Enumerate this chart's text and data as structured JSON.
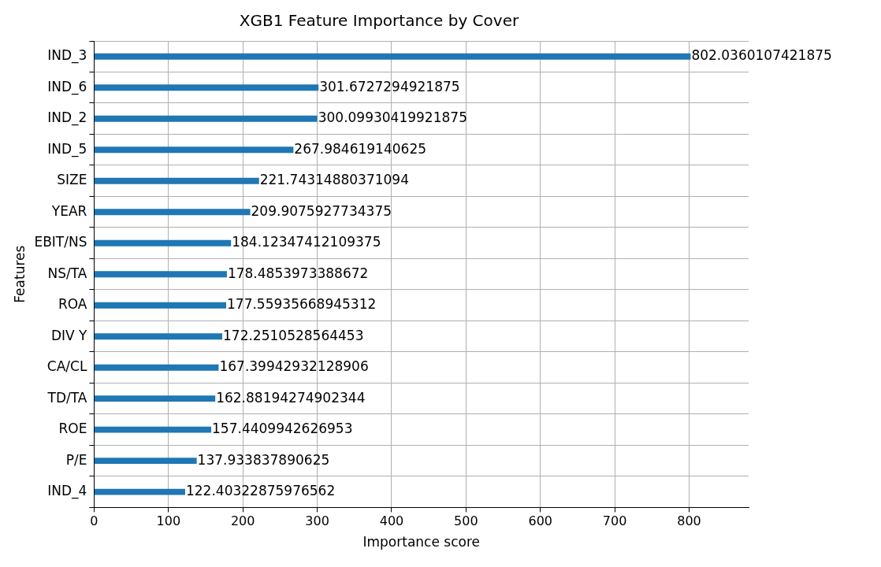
{
  "chart_data": {
    "type": "bar",
    "orientation": "horizontal",
    "title": "XGB1 Feature Importance by Cover",
    "xlabel": "Importance score",
    "ylabel": "Features",
    "categories": [
      "IND_3",
      "IND_6",
      "IND_2",
      "IND_5",
      "SIZE",
      "YEAR",
      "EBIT/NS",
      "NS/TA",
      "ROA",
      "DIV Y",
      "CA/CL",
      "TD/TA",
      "ROE",
      "P/E",
      "IND_4"
    ],
    "values": [
      802.0360107421875,
      301.6727294921875,
      300.09930419921875,
      267.984619140625,
      221.74314880371094,
      209.9075927734375,
      184.12347412109375,
      178.4853973388672,
      177.55935668945312,
      172.2510528564453,
      167.39942932128906,
      162.88194274902344,
      157.4409942626953,
      137.933837890625,
      122.40322875976562
    ],
    "color": "#1f77b4",
    "xlim": [
      0,
      880
    ],
    "xticks": [
      0,
      100,
      200,
      300,
      400,
      500,
      600,
      700,
      800
    ],
    "grid": true,
    "legend": false,
    "data_labels": true
  }
}
